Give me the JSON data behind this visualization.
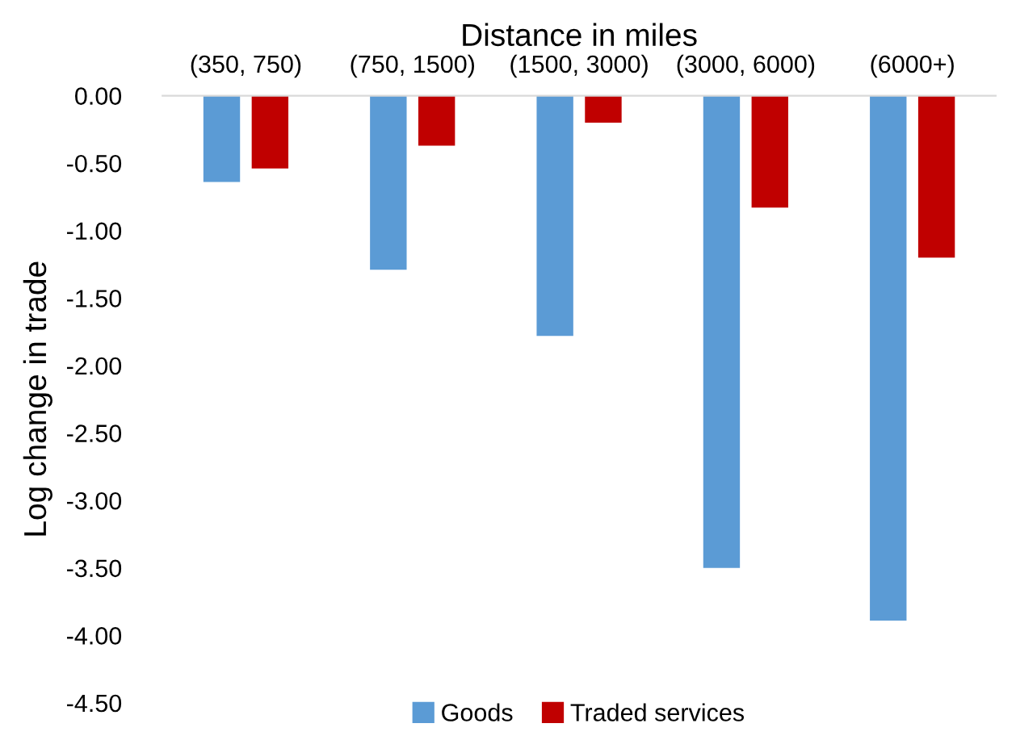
{
  "chart_data": {
    "type": "bar",
    "xlabel": "Distance in miles",
    "ylabel": "Log change in trade",
    "categories": [
      "(350, 750)",
      "(750, 1500)",
      "(1500, 3000)",
      "(3000, 6000)",
      "(6000+)"
    ],
    "series": [
      {
        "name": "Goods",
        "color": "#5b9bd5",
        "values": [
          -0.64,
          -1.29,
          -1.78,
          -3.5,
          -3.89
        ]
      },
      {
        "name": "Traded services",
        "color": "#c00000",
        "values": [
          -0.54,
          -0.37,
          -0.2,
          -0.83,
          -1.2
        ]
      }
    ],
    "ylim": [
      -4.5,
      0
    ],
    "yticks": [
      {
        "value": 0,
        "label": "0.00"
      },
      {
        "value": -0.5,
        "label": "-0.50"
      },
      {
        "value": -1,
        "label": "-1.00"
      },
      {
        "value": -1.5,
        "label": "-1.50"
      },
      {
        "value": -2,
        "label": "-2.00"
      },
      {
        "value": -2.5,
        "label": "-2.50"
      },
      {
        "value": -3,
        "label": "-3.00"
      },
      {
        "value": -3.5,
        "label": "-3.50"
      },
      {
        "value": -4,
        "label": "-4.00"
      },
      {
        "value": -4.5,
        "label": "-4.50"
      }
    ],
    "legend": "bottom",
    "grid": false
  }
}
